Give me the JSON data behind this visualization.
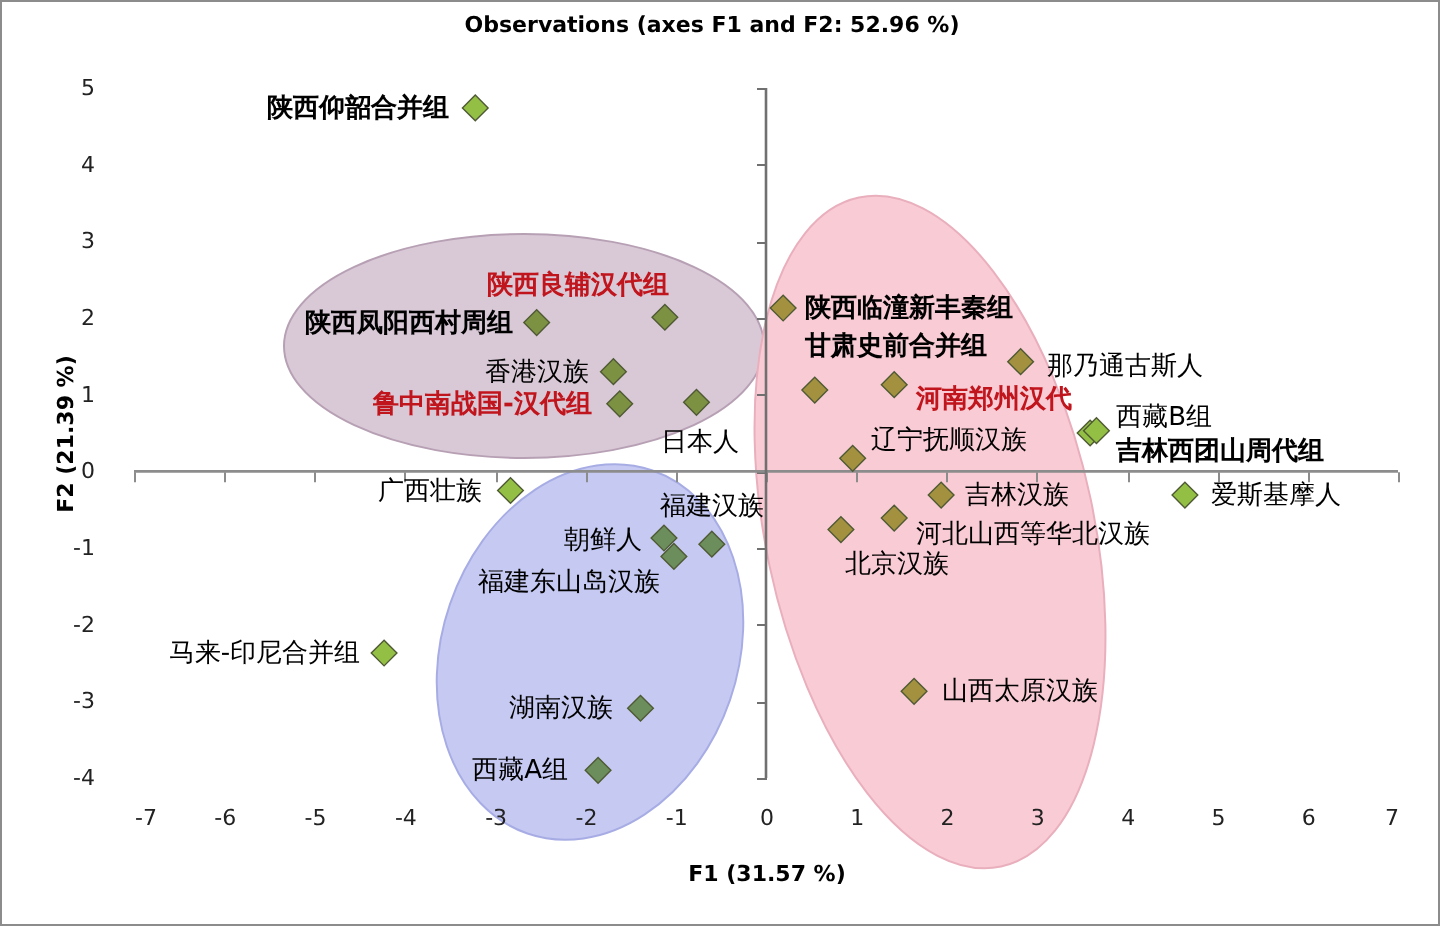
{
  "chart_data": {
    "type": "scatter",
    "title": "Observations (axes F1 and F2: 52.96 %)",
    "xlabel": "F1 (31.57 %)",
    "ylabel": "F2 (21.39 %)",
    "x": [
      -3.22,
      -2.54,
      -1.12,
      -1.69,
      -1.62,
      -0.77,
      -2.83,
      -1.13,
      -1.02,
      -0.6,
      -4.23,
      -1.39,
      -1.86,
      0.19,
      0.54,
      1.42,
      2.82,
      3.59,
      3.66,
      0.96,
      4.64,
      1.94,
      1.42,
      0.83,
      1.64
    ],
    "values": [
      4.74,
      1.94,
      2.01,
      1.3,
      0.88,
      0.9,
      -0.25,
      -0.87,
      -1.11,
      -0.95,
      -2.37,
      -3.09,
      -3.9,
      2.13,
      1.06,
      1.13,
      1.43,
      0.5,
      0.53,
      0.17,
      -0.31,
      -0.31,
      -0.61,
      -0.76,
      -2.87
    ],
    "colors": [
      "#93bf45",
      "#7d9143",
      "#7d9143",
      "#7d9143",
      "#7d9143",
      "#7d9143",
      "#93bf45",
      "#6c8d5c",
      "#6c8d5c",
      "#6c8d5c",
      "#93bf45",
      "#6c8d5c",
      "#6c8d5c",
      "#a3913f",
      "#a3913f",
      "#a3913f",
      "#a3913f",
      "#93bf45",
      "#93bf45",
      "#a3913f",
      "#93bf45",
      "#a3913f",
      "#a3913f",
      "#a3913f",
      "#a3913f"
    ],
    "xlim": [
      -7,
      7
    ],
    "xticks": [
      -7,
      -6,
      -5,
      -4,
      -3,
      -2,
      -1,
      0,
      1,
      2,
      3,
      4,
      5,
      6,
      7
    ],
    "ylim": [
      -4,
      5
    ],
    "yticks": [
      -4,
      -3,
      -2,
      -1,
      0,
      1,
      2,
      3,
      4,
      5
    ],
    "grid": false,
    "marker": "diamond",
    "ref_lines": [
      {
        "axis": "y",
        "value": 0,
        "color": "#8c8c8c"
      },
      {
        "axis": "x",
        "value": 0,
        "color": "#707070"
      }
    ],
    "annotations": [
      {
        "text": "陕西仰韶合并组",
        "x": -3.22,
        "y": 4.74
      },
      {
        "text": "陕西凤阳西村周组",
        "x": -2.54,
        "y": 1.94
      },
      {
        "text": "陕西良辅汉代组",
        "x": -1.12,
        "y": 2.01
      },
      {
        "text": "香港汉族",
        "x": -1.69,
        "y": 1.3
      },
      {
        "text": "鲁中南战国-汉代组",
        "x": -1.62,
        "y": 0.88
      },
      {
        "text": "日本人",
        "x": -0.77,
        "y": 0.9
      },
      {
        "text": "广西壮族",
        "x": -2.83,
        "y": -0.25
      },
      {
        "text": "朝鲜人",
        "x": -1.13,
        "y": -0.87
      },
      {
        "text": "福建东山岛汉族",
        "x": -1.02,
        "y": -1.11
      },
      {
        "text": "福建汉族",
        "x": -0.6,
        "y": -0.95
      },
      {
        "text": "马来-印尼合并组",
        "x": -4.23,
        "y": -2.37
      },
      {
        "text": "湖南汉族",
        "x": -1.39,
        "y": -3.09
      },
      {
        "text": "西藏A组",
        "x": -1.86,
        "y": -3.9
      },
      {
        "text": "陕西临潼新丰秦组",
        "x": 0.19,
        "y": 2.13
      },
      {
        "text": "甘肃史前合并组",
        "x": 0.54,
        "y": 1.06
      },
      {
        "text": "河南郑州汉代",
        "x": 1.42,
        "y": 1.13
      },
      {
        "text": "那乃通古斯人",
        "x": 2.82,
        "y": 1.43
      },
      {
        "text": "西藏B组",
        "x": 3.59,
        "y": 0.5
      },
      {
        "text": "吉林西团山周代组",
        "x": 3.66,
        "y": 0.53
      },
      {
        "text": "辽宁抚顺汉族",
        "x": 0.96,
        "y": 0.17
      },
      {
        "text": "爱斯基摩人",
        "x": 4.64,
        "y": -0.31
      },
      {
        "text": "吉林汉族",
        "x": 1.94,
        "y": -0.31
      },
      {
        "text": "河北山西等华北汉族",
        "x": 1.42,
        "y": -0.61
      },
      {
        "text": "北京汉族",
        "x": 0.83,
        "y": -0.76
      },
      {
        "text": "山西太原汉族",
        "x": 1.64,
        "y": -2.87
      }
    ]
  }
}
